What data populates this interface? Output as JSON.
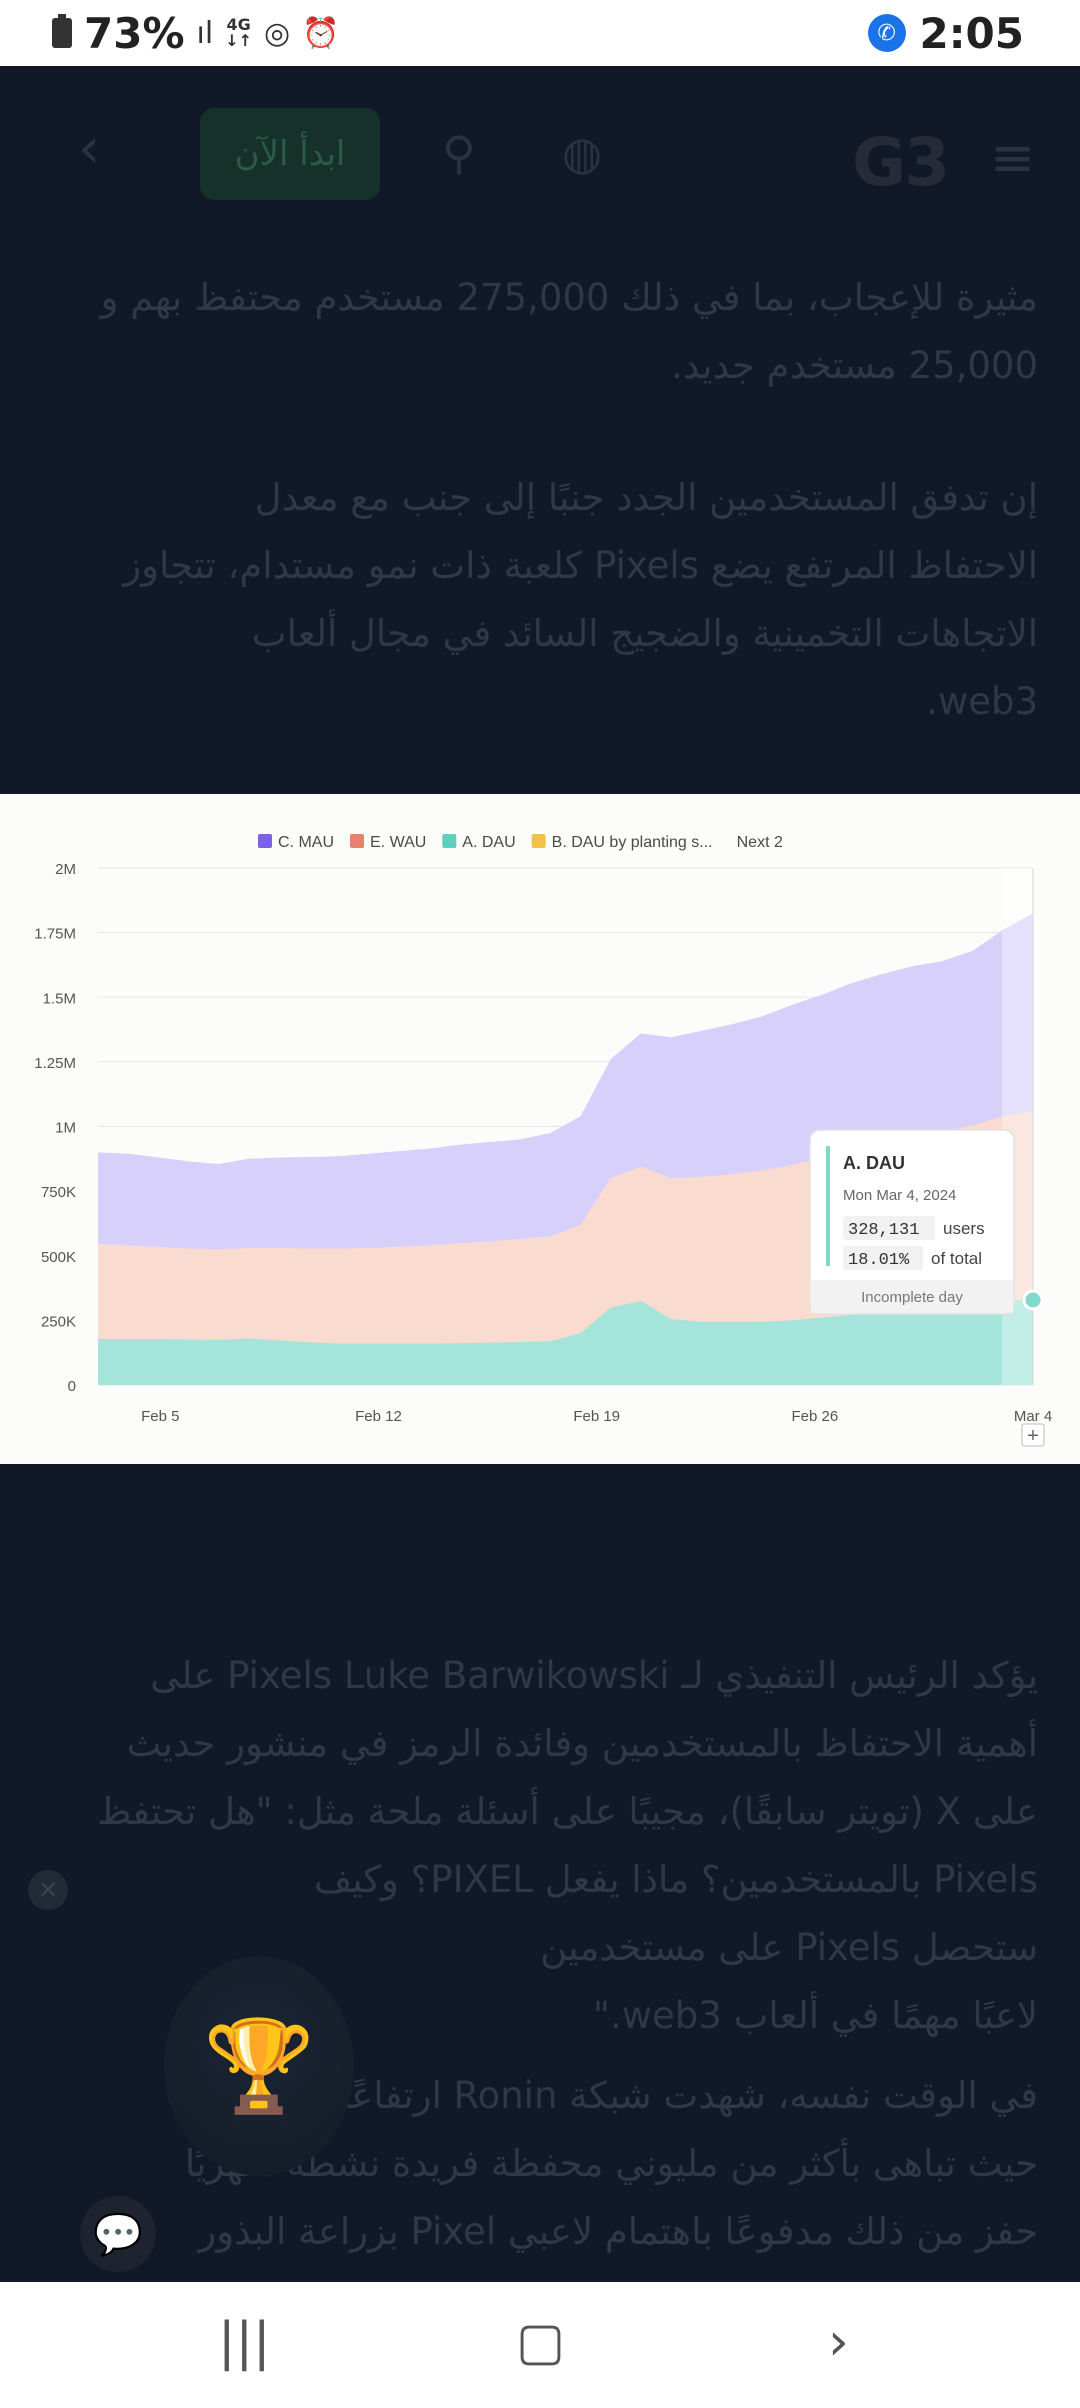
{
  "status_bar": {
    "battery": "73%",
    "signal": "ıl",
    "network": "4G",
    "time": "2:05"
  },
  "site_header": {
    "start_button": "ابدأ الآن",
    "logo": "G3"
  },
  "article": {
    "para1_l1": "مثيرة للإعجاب، بما في ذلك 275,000 مستخدم محتفظ بهم و",
    "para1_l2": "25,000 مستخدم جديد.",
    "para2_l1": "إن تدفق المستخدمين الجدد جنبًا إلى جنب مع معدل",
    "para2_l2": "الاحتفاظ المرتفع يضع Pixels كلعبة ذات نمو مستدام، تتجاوز",
    "para2_l3": "الاتجاهات التخمينية والضجيج السائد في مجال ألعاب",
    "para2_l4": "web3.",
    "para3_l1": "يؤكد الرئيس التنفيذي لـ Pixels Luke Barwikowski على",
    "para3_l2": "أهمية الاحتفاظ بالمستخدمين وفائدة الرمز في منشور حديث",
    "para3_l3": "على X (تويتر سابقًا)، مجيبًا على أسئلة ملحة مثل: \"هل تحتفظ",
    "para3_l4": "Pixels بالمستخدمين؟ ماذا يفعل PIXEL؟ وكيف",
    "para3_l5": "ستحصل Pixels على مستخدمين",
    "para3_l6": "لاعبًا مهمًا في ألعاب web3.\"",
    "para4_l1": "في الوقت نفسه، شهدت شبكة Ronin ارتفاعًا في",
    "para4_l2": "حيث تباهى بأكثر من مليوني محفظة فريدة نشطة شهريًا",
    "para4_l3": "حفز من ذلك مدفوعًا باهتمام لاعبي Pixel بزراعة البذور"
  },
  "chart_data": {
    "type": "area",
    "legend": [
      {
        "label": "C. MAU",
        "color": "#7b61e8"
      },
      {
        "label": "E. WAU",
        "color": "#e8826a"
      },
      {
        "label": "A. DAU",
        "color": "#5fcfc0"
      },
      {
        "label": "B. DAU by planting s...",
        "color": "#f0c24a"
      }
    ],
    "legend_more": "Next 2",
    "y_ticks": [
      "0",
      "250K",
      "500K",
      "750K",
      "1M",
      "1.25M",
      "1.5M",
      "1.75M",
      "2M"
    ],
    "ylim": [
      0,
      2000000
    ],
    "x_ticks": [
      "Feb 5",
      "Feb 12",
      "Feb 19",
      "Feb 26",
      "Mar 4"
    ],
    "x_start_day": 3,
    "x_end_day": 33,
    "incomplete_from_day": 32,
    "series": [
      {
        "name": "C. MAU",
        "fill": "#d7d0fb",
        "values": [
          900000,
          895000,
          880000,
          865000,
          855000,
          875000,
          880000,
          882000,
          885000,
          895000,
          905000,
          915000,
          930000,
          940000,
          950000,
          975000,
          1040000,
          1260000,
          1360000,
          1345000,
          1370000,
          1395000,
          1425000,
          1470000,
          1510000,
          1555000,
          1590000,
          1620000,
          1640000,
          1680000,
          1760000,
          1825000
        ]
      },
      {
        "name": "E. WAU",
        "fill": "#f9dbcf",
        "values": [
          545000,
          540000,
          535000,
          528000,
          525000,
          530000,
          530000,
          528000,
          528000,
          530000,
          535000,
          540000,
          548000,
          556000,
          565000,
          575000,
          620000,
          800000,
          845000,
          800000,
          805000,
          815000,
          830000,
          850000,
          880000,
          910000,
          935000,
          960000,
          980000,
          1005000,
          1040000,
          1060000
        ]
      },
      {
        "name": "A. DAU",
        "fill": "#a4e4da",
        "values": [
          178000,
          178000,
          178000,
          176000,
          174000,
          180000,
          172000,
          165000,
          160000,
          160000,
          160000,
          160000,
          162000,
          164000,
          166000,
          170000,
          200000,
          300000,
          325000,
          255000,
          245000,
          245000,
          245000,
          250000,
          260000,
          272000,
          285000,
          295000,
          305000,
          318000,
          328131,
          330000
        ]
      }
    ],
    "tooltip": {
      "series": "A. DAU",
      "date": "Mon Mar 4, 2024",
      "value": "328,131",
      "value_unit": "users",
      "share": "18.01%",
      "share_unit": "of total",
      "footer": "Incomplete day"
    }
  }
}
